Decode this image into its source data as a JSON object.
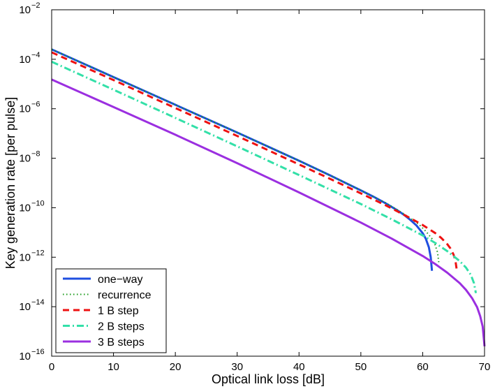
{
  "chart_data": {
    "type": "line",
    "title": "",
    "xlabel": "Optical link loss [dB]",
    "ylabel": "Key generation rate [per pulse]",
    "xlim": [
      0,
      70
    ],
    "ylim_log10": [
      -16,
      -2
    ],
    "y_scale": "log",
    "grid": false,
    "legend_placement": "bottom-left",
    "x_ticks": [
      0,
      10,
      20,
      30,
      40,
      50,
      60,
      70
    ],
    "y_tick_exponents": [
      -16,
      -14,
      -12,
      -10,
      -8,
      -6,
      -4,
      -2
    ],
    "y_tick_base": "10",
    "series": [
      {
        "name": "one−way",
        "color": "#1f4fe0",
        "style": "solid",
        "x": [
          0,
          10,
          20,
          30,
          40,
          45,
          50,
          52,
          54,
          56,
          57,
          58,
          59,
          60,
          60.5,
          61,
          61.3,
          61.5
        ],
        "log10_y": [
          -3.6,
          -4.72,
          -5.84,
          -6.96,
          -8.1,
          -8.69,
          -9.3,
          -9.55,
          -9.82,
          -10.12,
          -10.29,
          -10.49,
          -10.72,
          -11.03,
          -11.25,
          -11.6,
          -12.0,
          -12.55
        ]
      },
      {
        "name": "recurrence",
        "color": "#1a9a1a",
        "style": "dotted",
        "x": [
          0,
          10,
          20,
          30,
          40,
          45,
          50,
          54,
          56,
          58,
          59.5,
          60.5,
          61.5,
          62,
          62.4,
          62.6
        ],
        "log10_y": [
          -3.6,
          -4.72,
          -5.84,
          -6.96,
          -8.1,
          -8.69,
          -9.3,
          -9.8,
          -10.1,
          -10.42,
          -10.7,
          -10.95,
          -11.25,
          -11.5,
          -11.8,
          -12.2
        ]
      },
      {
        "name": "1 B step",
        "color": "#ee1111",
        "style": "dashed",
        "x": [
          0,
          10,
          20,
          30,
          40,
          45,
          50,
          54,
          56,
          58,
          60,
          62,
          63,
          64,
          64.5,
          65,
          65.3,
          65.5
        ],
        "log10_y": [
          -3.72,
          -4.84,
          -5.97,
          -7.1,
          -8.25,
          -8.83,
          -9.42,
          -9.9,
          -10.16,
          -10.42,
          -10.7,
          -11.02,
          -11.22,
          -11.48,
          -11.65,
          -11.9,
          -12.15,
          -12.5
        ]
      },
      {
        "name": "2 B steps",
        "color": "#33e0a8",
        "style": "dashdot",
        "x": [
          0,
          10,
          20,
          30,
          40,
          50,
          55,
          60,
          62,
          64,
          66,
          67,
          67.8,
          68.3,
          68.6
        ],
        "log10_y": [
          -4.1,
          -5.23,
          -6.37,
          -7.52,
          -8.68,
          -9.85,
          -10.47,
          -11.12,
          -11.42,
          -11.76,
          -12.16,
          -12.42,
          -12.72,
          -13.05,
          -13.45
        ]
      },
      {
        "name": "3 B steps",
        "color": "#9b2fe0",
        "style": "solid",
        "x": [
          0,
          10,
          20,
          30,
          40,
          50,
          55,
          60,
          62,
          64,
          66,
          67,
          68,
          68.8,
          69.3,
          69.7,
          70
        ],
        "log10_y": [
          -4.82,
          -5.93,
          -7.05,
          -8.2,
          -9.38,
          -10.6,
          -11.25,
          -11.95,
          -12.27,
          -12.63,
          -13.05,
          -13.32,
          -13.66,
          -14.02,
          -14.38,
          -14.8,
          -15.6
        ]
      }
    ]
  }
}
